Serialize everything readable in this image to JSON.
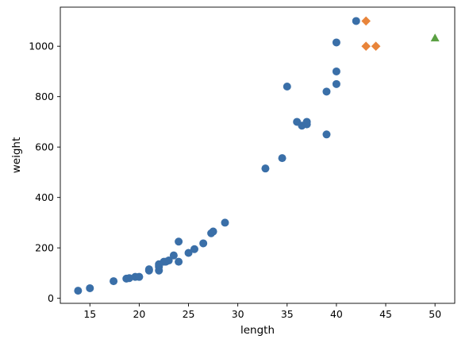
{
  "chart_data": {
    "type": "scatter",
    "title": "",
    "xlabel": "length",
    "ylabel": "weight",
    "xlim": [
      12.0,
      52.0
    ],
    "ylim": [
      -20,
      1155
    ],
    "xticks": [
      15,
      20,
      25,
      30,
      35,
      40,
      45,
      50
    ],
    "yticks": [
      0,
      200,
      400,
      600,
      800,
      1000
    ],
    "grid": false,
    "legend": "none",
    "series": [
      {
        "color": "#3a6fa8",
        "marker": "circle",
        "points": [
          [
            13.8,
            30
          ],
          [
            15.0,
            40
          ],
          [
            17.4,
            68
          ],
          [
            18.7,
            78
          ],
          [
            19.0,
            80
          ],
          [
            19.6,
            85
          ],
          [
            20.0,
            85
          ],
          [
            21.0,
            110
          ],
          [
            21.0,
            115
          ],
          [
            22.0,
            110
          ],
          [
            22.0,
            125
          ],
          [
            22.0,
            130
          ],
          [
            22.0,
            135
          ],
          [
            22.5,
            145
          ],
          [
            22.7,
            145
          ],
          [
            23.0,
            150
          ],
          [
            23.5,
            170
          ],
          [
            24.0,
            145
          ],
          [
            24.0,
            225
          ],
          [
            25.0,
            180
          ],
          [
            25.6,
            195
          ],
          [
            26.5,
            218
          ],
          [
            27.3,
            258
          ],
          [
            27.5,
            265
          ],
          [
            28.7,
            300
          ],
          [
            32.8,
            515
          ],
          [
            34.5,
            556
          ],
          [
            35.0,
            840
          ],
          [
            36.0,
            700
          ],
          [
            36.5,
            685
          ],
          [
            37.0,
            690
          ],
          [
            37.0,
            700
          ],
          [
            39.0,
            820
          ],
          [
            39.0,
            650
          ],
          [
            40.0,
            850
          ],
          [
            40.0,
            900
          ],
          [
            40.0,
            1015
          ],
          [
            42.0,
            1100
          ]
        ]
      },
      {
        "color": "#e8843a",
        "marker": "diamond",
        "points": [
          [
            43.0,
            1100
          ],
          [
            43.0,
            1000
          ],
          [
            44.0,
            1000
          ]
        ]
      },
      {
        "color": "#5aa042",
        "marker": "triangle",
        "points": [
          [
            50.0,
            1033
          ]
        ]
      }
    ]
  }
}
